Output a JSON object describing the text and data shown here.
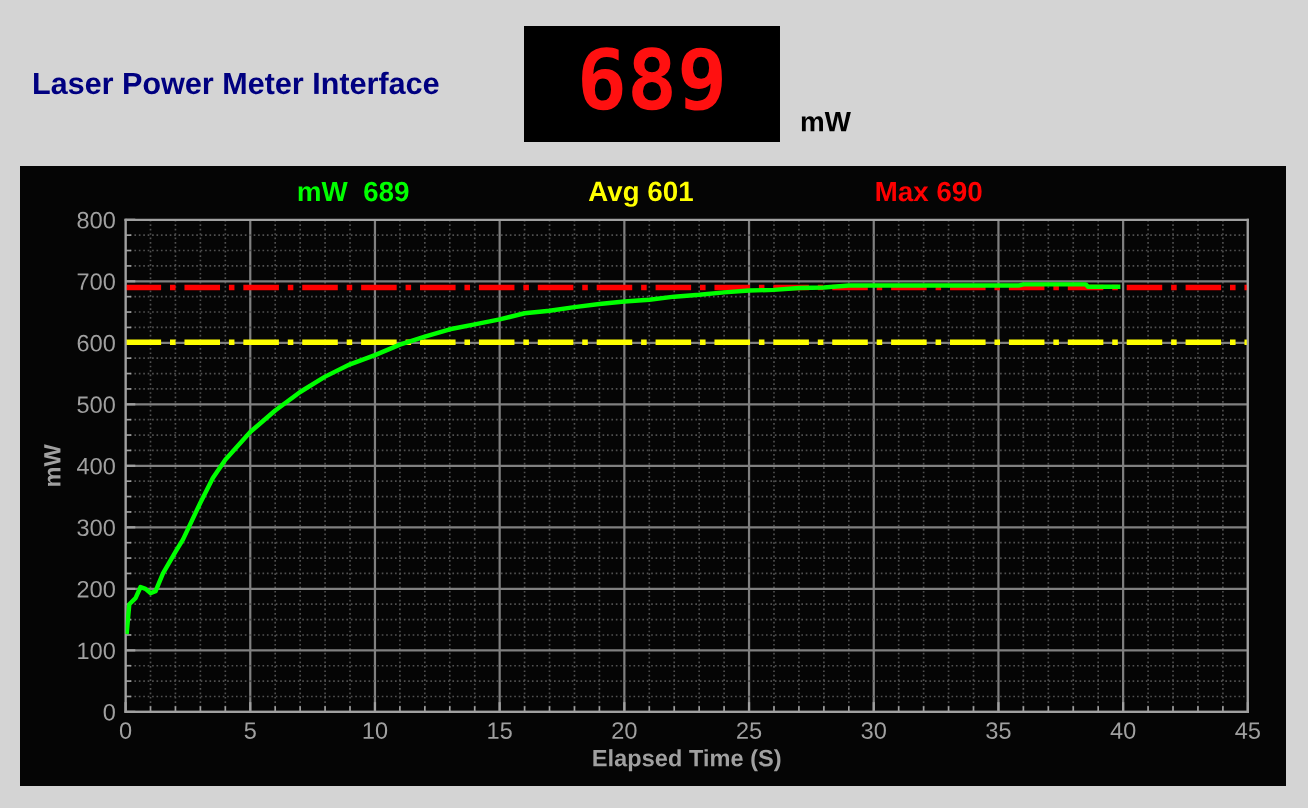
{
  "chart_data": {
    "type": "line",
    "title": "Laser Power Meter Interface",
    "xlabel": "Elapsed Time (S)",
    "ylabel": "mW",
    "annotations": [
      "mW  689",
      "689",
      "mW"
    ],
    "x": [
      0.05,
      0.15,
      0.4,
      0.6,
      0.8,
      1.0,
      1.2,
      1.5,
      2.0,
      2.3,
      3,
      3.5,
      4,
      5,
      6,
      7,
      8,
      9,
      10,
      11,
      12,
      13,
      14,
      15,
      16,
      17,
      18,
      19,
      20,
      21,
      22,
      23,
      24,
      25,
      26,
      27,
      28,
      29,
      30,
      32,
      34,
      35.8,
      36,
      38.5,
      38.6,
      39.8
    ],
    "series": [
      {
        "color": "#00ff00",
        "values": [
          130,
          175,
          185,
          203,
          200,
          193,
          196,
          225,
          260,
          280,
          340,
          380,
          410,
          455,
          490,
          520,
          545,
          565,
          580,
          597,
          610,
          622,
          630,
          638,
          648,
          652,
          658,
          663,
          667,
          670,
          675,
          678,
          682,
          685,
          686,
          689,
          690,
          693,
          693,
          693,
          693,
          693,
          695,
          695,
          691,
          691
        ]
      }
    ],
    "ref_lines": [
      {
        "axis": "y",
        "value": 601,
        "label": "Avg 601",
        "color": "#ffff00",
        "line_style": "dashdot"
      },
      {
        "axis": "y",
        "value": 690,
        "label": "Max 690",
        "color": "#ff0000",
        "line_style": "dashdot"
      }
    ],
    "xlim": [
      0,
      45
    ],
    "xticks": [
      0,
      5,
      10,
      15,
      20,
      25,
      30,
      35,
      40,
      45
    ],
    "ylim": [
      0,
      800
    ],
    "yticks": [
      0,
      100,
      200,
      300,
      400,
      500,
      600,
      700,
      800
    ],
    "grid": true,
    "marker": "none",
    "line_style": "solid"
  }
}
